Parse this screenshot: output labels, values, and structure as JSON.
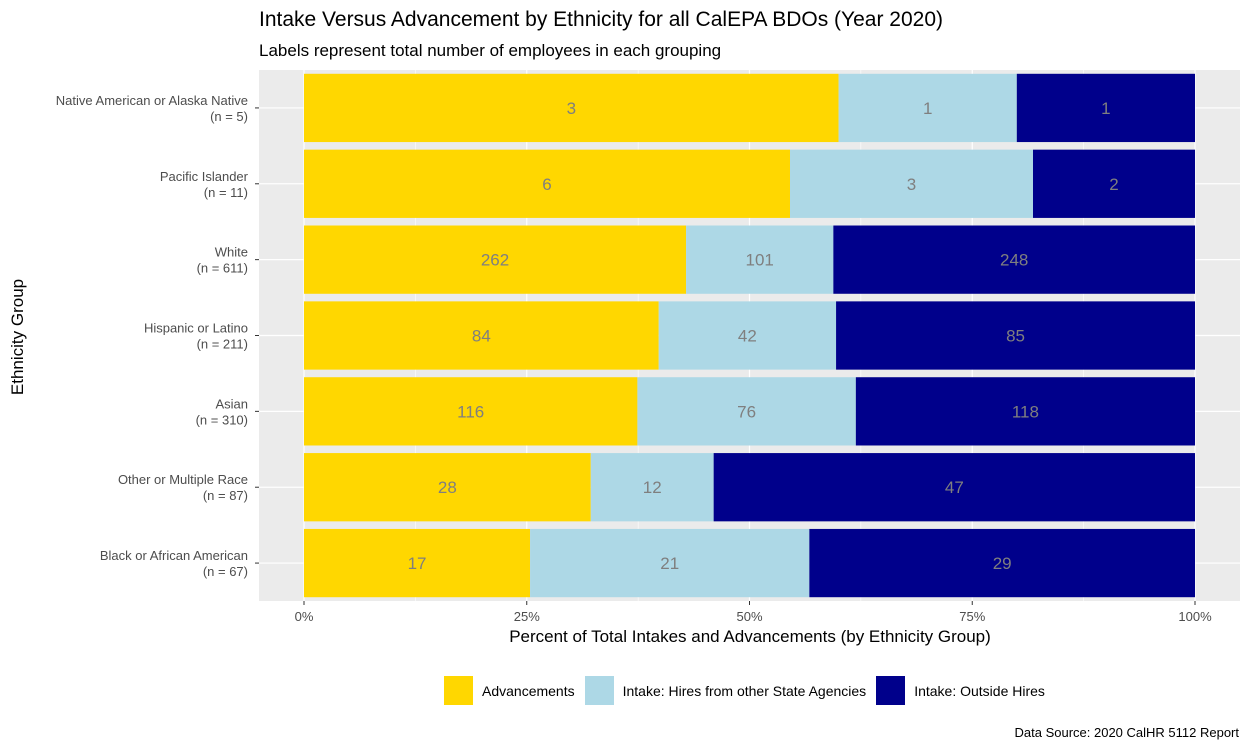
{
  "chart_data": {
    "type": "bar",
    "orientation": "horizontal",
    "stacked": "percent",
    "title": "Intake Versus Advancement by Ethnicity for all CalEPA BDOs (Year 2020)",
    "subtitle": "Labels represent total number of employees in each grouping",
    "xlabel": "Percent of Total Intakes and Advancements (by Ethnicity Group)",
    "ylabel": "Ethnicity Group",
    "xlim": [
      0,
      100
    ],
    "x_ticks": [
      "0%",
      "25%",
      "50%",
      "75%",
      "100%"
    ],
    "categories": [
      {
        "name": "Native American or Alaska Native",
        "n_label": "(n = 5)"
      },
      {
        "name": "Pacific Islander",
        "n_label": "(n = 11)"
      },
      {
        "name": "White",
        "n_label": "(n = 611)"
      },
      {
        "name": "Hispanic or Latino",
        "n_label": "(n = 211)"
      },
      {
        "name": "Asian",
        "n_label": "(n = 310)"
      },
      {
        "name": "Other or Multiple Race",
        "n_label": "(n = 87)"
      },
      {
        "name": "Black or African American",
        "n_label": "(n = 67)"
      }
    ],
    "series": [
      {
        "name": "Advancements",
        "color": "#FFD700",
        "values": [
          3,
          6,
          262,
          84,
          116,
          28,
          17
        ]
      },
      {
        "name": "Intake: Hires from other State Agencies",
        "color": "#ADD8E6",
        "values": [
          1,
          3,
          101,
          42,
          76,
          12,
          21
        ]
      },
      {
        "name": "Intake: Outside Hires",
        "color": "#00008B",
        "values": [
          1,
          2,
          248,
          85,
          118,
          47,
          29
        ]
      }
    ],
    "legend_position": "bottom",
    "grid": true,
    "panel_background": "#EBEBEB",
    "label_color": "#7F7F7F"
  },
  "caption": "Data Source: 2020 CalHR 5112 Report"
}
